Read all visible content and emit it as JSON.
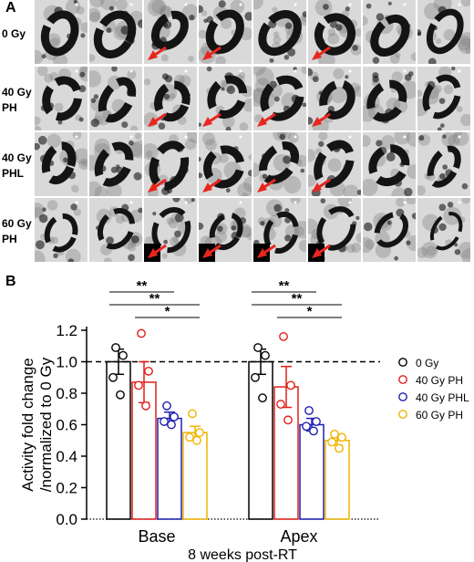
{
  "panel_a": {
    "label": "A",
    "rows": [
      {
        "label_lines": [
          "0 Gy"
        ],
        "arrows": [
          2,
          3,
          5
        ]
      },
      {
        "label_lines": [
          "40 Gy",
          "PH"
        ],
        "arrows": [
          2,
          3,
          4,
          5
        ]
      },
      {
        "label_lines": [
          "40 Gy",
          "PHL"
        ],
        "arrows": [
          2,
          3,
          4,
          5
        ]
      },
      {
        "label_lines": [
          "60 Gy",
          "PH"
        ],
        "arrows": [
          2,
          3,
          4,
          5
        ]
      }
    ],
    "columns": 8,
    "colors": {
      "tile_background": "#d9d9d9",
      "myocardium": "#141414",
      "arrow": "#e8261f"
    }
  },
  "panel_b": {
    "label": "B"
  },
  "chart_data": {
    "type": "bar",
    "ylabel_lines": [
      "Activity fold change",
      "/normalized to 0 Gy"
    ],
    "xlabel": "8 weeks post-RT",
    "categories": [
      "Base",
      "Apex"
    ],
    "ylim": [
      0.0,
      1.2
    ],
    "yticks": [
      "0.0",
      "0.2",
      "0.4",
      "0.6",
      "0.8",
      "1.0",
      "1.2"
    ],
    "reference_line": 1.0,
    "series": [
      {
        "name": "0 Gy",
        "color": "#000000",
        "values": [
          1.0,
          1.0
        ],
        "sem": [
          0.08,
          0.08
        ],
        "points": [
          [
            1.09,
            1.04,
            0.9,
            0.79
          ],
          [
            1.09,
            1.04,
            0.9,
            0.77
          ]
        ]
      },
      {
        "name": "40 Gy PH",
        "color": "#e0201b",
        "values": [
          0.87,
          0.84
        ],
        "sem": [
          0.13,
          0.13
        ],
        "points": [
          [
            1.18,
            0.94,
            0.85,
            0.72
          ],
          [
            1.16,
            0.85,
            0.73,
            0.63
          ]
        ]
      },
      {
        "name": "40 Gy PHL",
        "color": "#1f1fb4",
        "values": [
          0.64,
          0.6
        ],
        "sem": [
          0.04,
          0.04
        ],
        "points": [
          [
            0.72,
            0.65,
            0.62,
            0.6
          ],
          [
            0.69,
            0.62,
            0.59,
            0.56
          ]
        ]
      },
      {
        "name": "60 Gy PH",
        "color": "#f0b400",
        "values": [
          0.55,
          0.5
        ],
        "sem": [
          0.04,
          0.03
        ],
        "points": [
          [
            0.67,
            0.55,
            0.52,
            0.5
          ],
          [
            0.54,
            0.52,
            0.49,
            0.45
          ]
        ]
      }
    ],
    "significance": [
      {
        "group": 0,
        "from": 0,
        "to": 2,
        "label": "**"
      },
      {
        "group": 0,
        "from": 0,
        "to": 3,
        "label": "**"
      },
      {
        "group": 0,
        "from": 1,
        "to": 3,
        "label": "*"
      },
      {
        "group": 1,
        "from": 0,
        "to": 2,
        "label": "**"
      },
      {
        "group": 1,
        "from": 0,
        "to": 3,
        "label": "**"
      },
      {
        "group": 1,
        "from": 1,
        "to": 3,
        "label": "*"
      }
    ],
    "legend": [
      "0 Gy",
      "40 Gy PH",
      "40 Gy PHL",
      "60 Gy PH"
    ],
    "legend_position": "right"
  }
}
